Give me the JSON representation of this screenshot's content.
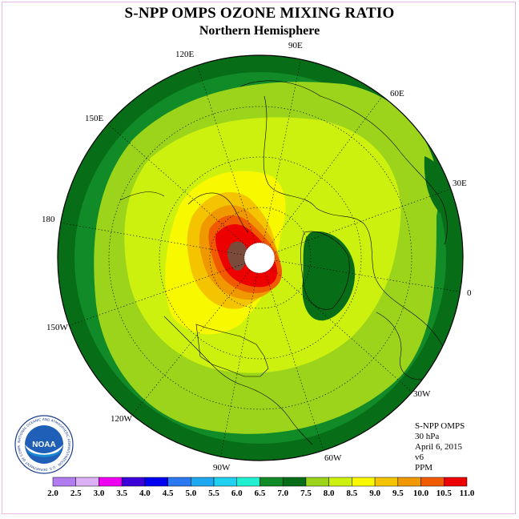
{
  "header": {
    "title": "S-NPP OMPS OZONE MIXING RATIO",
    "subtitle": "Northern Hemisphere"
  },
  "longitude_labels": {
    "lon_90E": "90E",
    "lon_60E": "60E",
    "lon_30E": "30E",
    "lon_0": "0",
    "lon_30W": "30W",
    "lon_60W": "60W",
    "lon_90W": "90W",
    "lon_120W": "120W",
    "lon_150W": "150W",
    "lon_180": "180",
    "lon_150E": "150E",
    "lon_120E": "120E"
  },
  "info": {
    "instrument": "S-NPP OMPS",
    "level": "30 hPa",
    "date": "April 6, 2015",
    "version": "v6",
    "units": "PPM"
  },
  "logo": {
    "text": "NOAA",
    "ring_text": "NATIONAL OCEANIC AND ATMOSPHERIC ADMINISTRATION · U.S. DEPARTMENT OF COMMERCE"
  },
  "colorbar": {
    "labels": [
      "2.0",
      "2.5",
      "3.0",
      "3.5",
      "4.0",
      "4.5",
      "5.0",
      "5.5",
      "6.0",
      "6.5",
      "7.0",
      "7.5",
      "8.0",
      "8.5",
      "9.0",
      "9.5",
      "10.0",
      "10.5",
      "11.0"
    ],
    "colors": [
      "#b07cf0",
      "#dcb0f4",
      "#f000f0",
      "#3c00d8",
      "#0000f0",
      "#2c78f0",
      "#1ea8f0",
      "#20d0f0",
      "#20f0d0",
      "#118a28",
      "#076d17",
      "#9bd41b",
      "#cdf10e",
      "#f8f800",
      "#f5c400",
      "#f09800",
      "#f05a00",
      "#ec0000",
      "#7a4a3a"
    ]
  },
  "palette": {
    "c70": "#076d17",
    "c65": "#118a28",
    "c75": "#9bd41b",
    "c80": "#cdf10e",
    "c85": "#f8f800",
    "c90": "#f5c400",
    "c95": "#f09800",
    "c100": "#f05a00",
    "c105": "#ec0000",
    "c110": "#7a4a3a"
  }
}
